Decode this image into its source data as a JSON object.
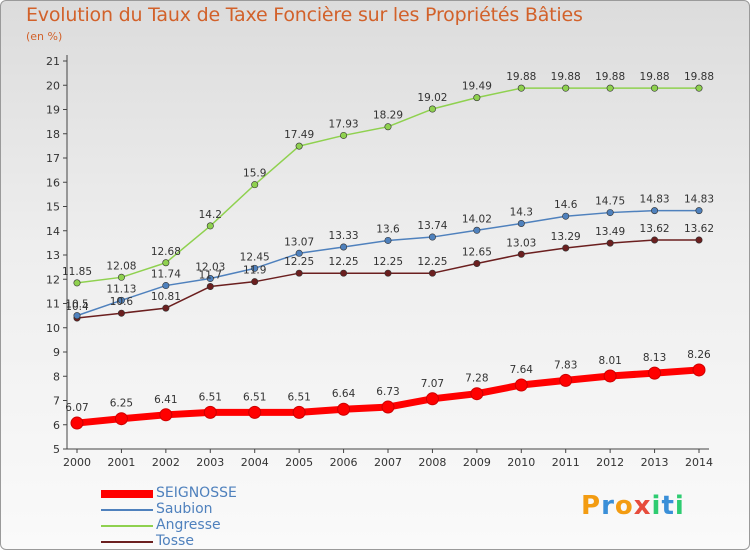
{
  "title": "Evolution du Taux de Taxe Foncière sur les Propriétés Bâties",
  "unit_label": "(en %)",
  "logo_text": "Proxiti",
  "chart_data": {
    "type": "line",
    "title": "Evolution du Taux de Taxe Foncière sur les Propriétés Bâties",
    "ylabel": "(en %)",
    "xlabel": "",
    "ylim": [
      5,
      21
    ],
    "yticks": [
      5,
      6,
      7,
      8,
      9,
      10,
      11,
      12,
      13,
      14,
      15,
      16,
      17,
      18,
      19,
      20,
      21
    ],
    "grid": false,
    "legend_position": "bottom-left",
    "x": [
      "2000",
      "2001",
      "2002",
      "2003",
      "2004",
      "2005",
      "2006",
      "2007",
      "2008",
      "2009",
      "2010",
      "2011",
      "2012",
      "2013",
      "2014"
    ],
    "series": [
      {
        "name": "SEIGNOSSE",
        "color": "#ff0000",
        "values": [
          6.07,
          6.25,
          6.41,
          6.51,
          6.51,
          6.51,
          6.64,
          6.73,
          7.07,
          7.28,
          7.64,
          7.83,
          8.01,
          8.13,
          8.26
        ],
        "labels": [
          "6.07",
          "6.25",
          "6.41",
          "6.51",
          "6.51",
          "6.51",
          "6.64",
          "6.73",
          "7.07",
          "7.28",
          "7.64",
          "7.83",
          "8.01",
          "8.13",
          "8.26"
        ]
      },
      {
        "name": "Saubion",
        "color": "#4f81bd",
        "values": [
          10.5,
          11.13,
          11.74,
          12.03,
          12.45,
          13.07,
          13.33,
          13.6,
          13.74,
          14.02,
          14.3,
          14.6,
          14.75,
          14.83,
          14.83
        ],
        "labels": [
          "10.5",
          "11.13",
          "11.74",
          "12.03",
          "12.45",
          "13.07",
          "13.33",
          "13.6",
          "13.74",
          "14.02",
          "14.3",
          "14.6",
          "14.75",
          "14.83",
          "14.83"
        ]
      },
      {
        "name": "Angresse",
        "color": "#8fd14f",
        "values": [
          11.85,
          12.08,
          12.68,
          14.2,
          15.9,
          17.49,
          17.93,
          18.29,
          19.02,
          19.49,
          19.88,
          19.88,
          19.88,
          19.88,
          19.88
        ],
        "labels": [
          "11.85",
          "12.08",
          "12.68",
          "14.2",
          "15.9",
          "17.49",
          "17.93",
          "18.29",
          "19.02",
          "19.49",
          "19.88",
          "19.88",
          "19.88",
          "19.88",
          "19.88"
        ]
      },
      {
        "name": "Tosse",
        "color": "#6b1f1f",
        "values": [
          10.4,
          10.6,
          10.81,
          11.7,
          11.9,
          12.25,
          12.25,
          12.25,
          12.25,
          12.65,
          13.03,
          13.29,
          13.49,
          13.62,
          13.62
        ],
        "labels": [
          "10.4",
          "10.6",
          "10.81",
          "11.7",
          "11.9",
          "12.25",
          "12.25",
          "12.25",
          "12.25",
          "12.65",
          "13.03",
          "13.29",
          "13.49",
          "13.62",
          "13.62"
        ]
      }
    ]
  }
}
